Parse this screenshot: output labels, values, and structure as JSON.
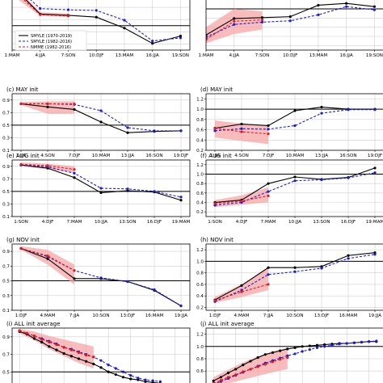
{
  "chart_data": [
    {
      "id": "a",
      "type": "line",
      "title": "",
      "xticks": [
        "1:MAM",
        "4:JJA",
        "7:SON",
        "10:DJF",
        "13:MAM",
        "16:JJA",
        "19:SON"
      ],
      "xlim": [
        1,
        20
      ],
      "ylim": [
        0.1,
        1.0
      ],
      "yticks": [],
      "refline": 0.5,
      "legend": [
        "SMYLE (1970-2019)",
        "SMYLE (1982-2016)",
        "NMME (1982-2016)"
      ],
      "series": [
        {
          "style": "smyle_long",
          "x": [
            1,
            4,
            7,
            10,
            13,
            16,
            19
          ],
          "y": [
            1.15,
            0.69,
            0.67,
            0.64,
            0.46,
            0.21,
            0.33
          ]
        },
        {
          "style": "smyle_short",
          "x": [
            1,
            4,
            7,
            10,
            13,
            16,
            19
          ],
          "y": [
            1.2,
            0.78,
            0.76,
            0.75,
            0.59,
            0.25,
            0.3
          ]
        },
        {
          "style": "nmme",
          "x": [
            1,
            4,
            7
          ],
          "y": [
            1.1,
            0.68,
            0.66
          ]
        }
      ],
      "band": {
        "x": [
          1,
          4,
          7
        ],
        "lo": [
          1.0,
          0.66,
          0.64
        ],
        "hi": [
          1.2,
          0.72,
          0.7
        ]
      }
    },
    {
      "id": "b",
      "type": "line",
      "title": "",
      "xticks": [
        "1:MAM",
        "4:JJA",
        "7:SON",
        "10:DJF",
        "13:MAM",
        "16:JJA",
        "19:SON"
      ],
      "xlim": [
        1,
        20
      ],
      "ylim": [
        0.1,
        1.3
      ],
      "yticks": [],
      "refline": 1.0,
      "series": [
        {
          "style": "smyle_long",
          "x": [
            1,
            4,
            7,
            10,
            13,
            16,
            19
          ],
          "y": [
            0.43,
            0.79,
            0.81,
            0.83,
            1.08,
            1.12,
            1.05
          ]
        },
        {
          "style": "smyle_short",
          "x": [
            1,
            4,
            7,
            10,
            13,
            16,
            19
          ],
          "y": [
            0.38,
            0.66,
            0.71,
            0.74,
            0.87,
            1.05,
            0.98
          ]
        },
        {
          "style": "nmme",
          "x": [
            1,
            4,
            7
          ],
          "y": [
            0.33,
            0.73,
            0.76
          ]
        }
      ],
      "band": {
        "x": [
          1,
          4,
          7
        ],
        "lo": [
          0.25,
          0.45,
          0.55
        ],
        "hi": [
          0.6,
          1.0,
          0.95
        ]
      }
    },
    {
      "id": "c",
      "type": "line",
      "title": "(c) MAY init",
      "xticks": [
        "1:JJA",
        "4:SON",
        "7:DJF",
        "10:MAM",
        "13:JJA",
        "16:SON",
        "19:DJF"
      ],
      "xlim": [
        0,
        20
      ],
      "ylim": [
        0.1,
        1.0
      ],
      "yticks": [
        0.1,
        0.3,
        0.5,
        0.7,
        0.9
      ],
      "refline": 0.5,
      "series": [
        {
          "style": "smyle_long",
          "x": [
            1,
            4,
            7,
            10,
            13,
            16,
            19
          ],
          "y": [
            0.84,
            0.79,
            0.75,
            0.55,
            0.38,
            0.4,
            0.41
          ]
        },
        {
          "style": "smyle_short",
          "x": [
            1,
            4,
            7,
            10,
            13,
            16,
            19
          ],
          "y": [
            0.84,
            0.84,
            0.83,
            0.73,
            0.46,
            0.41,
            0.41
          ]
        },
        {
          "style": "nmme",
          "x": [
            1,
            4,
            7
          ],
          "y": [
            0.84,
            0.84,
            0.84
          ]
        }
      ],
      "band": {
        "x": [
          1,
          4,
          7
        ],
        "lo": [
          0.82,
          0.68,
          0.68
        ],
        "hi": [
          0.87,
          0.88,
          0.88
        ]
      }
    },
    {
      "id": "d",
      "type": "line",
      "title": "(d) MAY init",
      "xticks": [
        "1:JJA",
        "4:SON",
        "7:DJF",
        "10:MAM",
        "13:JJA",
        "16:SON",
        "19:DJF"
      ],
      "xlim": [
        0,
        20
      ],
      "ylim": [
        0.2,
        1.3
      ],
      "yticks": [
        0.2,
        0.4,
        0.6,
        0.8,
        1.0,
        1.2
      ],
      "refline": 1.0,
      "series": [
        {
          "style": "smyle_long",
          "x": [
            1,
            4,
            7,
            10,
            13,
            16,
            19
          ],
          "y": [
            0.63,
            0.71,
            0.68,
            0.97,
            1.04,
            1.0,
            1.0
          ]
        },
        {
          "style": "smyle_short",
          "x": [
            1,
            4,
            7,
            10,
            13,
            16,
            19
          ],
          "y": [
            0.58,
            0.62,
            0.61,
            0.68,
            0.92,
            0.99,
            0.99
          ]
        },
        {
          "style": "nmme",
          "x": [
            1,
            4,
            7
          ],
          "y": [
            0.63,
            0.56,
            0.52
          ]
        }
      ],
      "band": {
        "x": [
          1,
          4,
          7
        ],
        "lo": [
          0.45,
          0.38,
          0.32
        ],
        "hi": [
          0.78,
          0.72,
          0.68
        ]
      }
    },
    {
      "id": "e",
      "type": "line",
      "title": "(e) AUG init",
      "xticks": [
        "1:SON",
        "4:DJF",
        "7:MAM",
        "10:JJA",
        "13:SON",
        "16:DJF",
        "19:MAM"
      ],
      "xlim": [
        0,
        20
      ],
      "ylim": [
        0.1,
        1.0
      ],
      "yticks": [
        0.1,
        0.3,
        0.5,
        0.7,
        0.9
      ],
      "refline": 0.5,
      "series": [
        {
          "style": "smyle_long",
          "x": [
            1,
            4,
            7,
            10,
            13,
            16,
            19
          ],
          "y": [
            0.92,
            0.87,
            0.72,
            0.48,
            0.51,
            0.49,
            0.36
          ]
        },
        {
          "style": "smyle_short",
          "x": [
            1,
            4,
            7,
            10,
            13,
            16,
            19
          ],
          "y": [
            0.92,
            0.89,
            0.79,
            0.55,
            0.54,
            0.5,
            0.41
          ]
        },
        {
          "style": "nmme",
          "x": [
            1,
            4,
            7
          ],
          "y": [
            0.93,
            0.91,
            0.85
          ]
        }
      ],
      "band": {
        "x": [
          1,
          4,
          7
        ],
        "lo": [
          0.9,
          0.85,
          0.8
        ],
        "hi": [
          0.96,
          0.94,
          0.9
        ]
      }
    },
    {
      "id": "f",
      "type": "line",
      "title": "(f) AUG init",
      "xticks": [
        "1:SON",
        "4:DJF",
        "7:MAM",
        "10:JJA",
        "13:SON",
        "16:DJF",
        "19:MAM"
      ],
      "xlim": [
        0,
        20
      ],
      "ylim": [
        0.1,
        1.3
      ],
      "yticks": [
        0.2,
        0.4,
        0.6,
        0.8,
        1.0,
        1.2
      ],
      "refline": 1.0,
      "series": [
        {
          "style": "smyle_long",
          "x": [
            1,
            4,
            7,
            10,
            13,
            16,
            19
          ],
          "y": [
            0.4,
            0.45,
            0.8,
            0.94,
            0.89,
            0.93,
            1.13
          ]
        },
        {
          "style": "smyle_short",
          "x": [
            1,
            4,
            7,
            10,
            13,
            16,
            19
          ],
          "y": [
            0.34,
            0.4,
            0.63,
            0.86,
            0.88,
            0.92,
            1.03
          ]
        },
        {
          "style": "nmme",
          "x": [
            1,
            4,
            7
          ],
          "y": [
            0.38,
            0.43,
            0.54
          ]
        }
      ],
      "band": {
        "x": [
          1,
          4,
          7
        ],
        "lo": [
          0.3,
          0.35,
          0.4
        ],
        "hi": [
          0.45,
          0.55,
          0.72
        ]
      }
    },
    {
      "id": "g",
      "type": "line",
      "title": "(g) NOV init",
      "xticks": [
        "1:DJF",
        "4:MAM",
        "7:JJA",
        "10:SON",
        "13:DJF",
        "16:MAM",
        "19:JJA"
      ],
      "xlim": [
        0,
        20
      ],
      "ylim": [
        0.1,
        1.0
      ],
      "yticks": [
        0.1,
        0.3,
        0.5,
        0.7,
        0.9
      ],
      "refline": 0.5,
      "series": [
        {
          "style": "smyle_long",
          "x": [
            1,
            4,
            7,
            10,
            13,
            16,
            19
          ],
          "y": [
            0.94,
            0.8,
            0.53,
            0.53,
            0.49,
            0.37,
            0.16
          ]
        },
        {
          "style": "smyle_short",
          "x": [
            1,
            4,
            7,
            10,
            13,
            16,
            19
          ],
          "y": [
            0.94,
            0.83,
            0.64,
            0.54,
            0.49,
            0.38,
            0.16
          ]
        },
        {
          "style": "nmme",
          "x": [
            1,
            4,
            7
          ],
          "y": [
            0.94,
            0.84,
            0.64
          ]
        }
      ],
      "band": {
        "x": [
          1,
          4,
          7
        ],
        "lo": [
          0.92,
          0.72,
          0.45
        ],
        "hi": [
          0.97,
          0.92,
          0.72
        ]
      }
    },
    {
      "id": "h",
      "type": "line",
      "title": "(h) NOV init",
      "xticks": [
        "1:DJF",
        "4:MAM",
        "7:JJA",
        "10:SON",
        "13:DJF",
        "16:MAM",
        "19:JJA"
      ],
      "xlim": [
        0,
        20
      ],
      "ylim": [
        0.15,
        1.3
      ],
      "yticks": [
        0.2,
        0.4,
        0.6,
        0.8,
        1.0,
        1.2
      ],
      "refline": 1.0,
      "series": [
        {
          "style": "smyle_long",
          "x": [
            1,
            4,
            7,
            10,
            13,
            16,
            19
          ],
          "y": [
            0.33,
            0.58,
            0.89,
            0.89,
            0.91,
            1.1,
            1.15
          ]
        },
        {
          "style": "smyle_short",
          "x": [
            1,
            4,
            7,
            10,
            13,
            16,
            19
          ],
          "y": [
            0.3,
            0.5,
            0.77,
            0.82,
            0.88,
            1.05,
            1.12
          ]
        },
        {
          "style": "nmme",
          "x": [
            1,
            4,
            7
          ],
          "y": [
            0.32,
            0.47,
            0.6
          ]
        }
      ],
      "band": {
        "x": [
          1,
          4,
          7
        ],
        "lo": [
          0.28,
          0.38,
          0.5
        ],
        "hi": [
          0.38,
          0.6,
          0.88
        ]
      }
    },
    {
      "id": "i",
      "type": "line",
      "title": "(i) ALL init average",
      "xticks": [],
      "xlim": [
        0,
        24
      ],
      "ylim": [
        0.3,
        1.0
      ],
      "yticks": [
        0.5,
        0.7,
        0.9
      ],
      "refline": 0.5,
      "series": [
        {
          "style": "smyle_long",
          "x": [
            1,
            2,
            3,
            4,
            5,
            6,
            7,
            8,
            9,
            10,
            11,
            12,
            13,
            14,
            15,
            16,
            17,
            18,
            19,
            20
          ],
          "y": [
            0.96,
            0.93,
            0.88,
            0.84,
            0.79,
            0.75,
            0.71,
            0.68,
            0.65,
            0.62,
            0.59,
            0.55,
            0.5,
            0.47,
            0.44,
            0.42,
            0.41,
            0.39,
            0.38,
            0.37
          ]
        },
        {
          "style": "smyle_short",
          "x": [
            1,
            2,
            3,
            4,
            5,
            6,
            7,
            8,
            9,
            10,
            11,
            12,
            13,
            14,
            15,
            16,
            17,
            18,
            19,
            20
          ],
          "y": [
            0.97,
            0.94,
            0.91,
            0.88,
            0.85,
            0.82,
            0.78,
            0.76,
            0.73,
            0.7,
            0.67,
            0.63,
            0.58,
            0.54,
            0.5,
            0.46,
            0.43,
            0.41,
            0.4,
            0.39
          ]
        },
        {
          "style": "nmme",
          "x": [
            1,
            2,
            3,
            4,
            5,
            6,
            7,
            8,
            9,
            10,
            11
          ],
          "y": [
            0.97,
            0.94,
            0.91,
            0.87,
            0.84,
            0.81,
            0.78,
            0.75,
            0.72,
            0.69,
            0.67
          ]
        }
      ],
      "band": {
        "x": [
          1,
          3,
          5,
          7,
          9,
          11
        ],
        "lo": [
          0.94,
          0.86,
          0.76,
          0.68,
          0.6,
          0.54
        ],
        "hi": [
          0.99,
          0.96,
          0.91,
          0.87,
          0.83,
          0.79
        ]
      }
    },
    {
      "id": "j",
      "type": "line",
      "title": "(j) ALL init average",
      "xticks": [],
      "xlim": [
        0,
        24
      ],
      "ylim": [
        0.3,
        1.3
      ],
      "yticks": [
        0.6,
        0.8,
        1.0,
        1.2
      ],
      "refline": 1.0,
      "series": [
        {
          "style": "smyle_long",
          "x": [
            1,
            2,
            3,
            4,
            5,
            6,
            7,
            8,
            9,
            10,
            11,
            12,
            13,
            14,
            15,
            16,
            17,
            18,
            19,
            20,
            21,
            22,
            23
          ],
          "y": [
            0.44,
            0.5,
            0.57,
            0.63,
            0.7,
            0.76,
            0.82,
            0.87,
            0.9,
            0.93,
            0.96,
            0.98,
            1.0,
            1.01,
            1.02,
            1.03,
            1.04,
            1.05,
            1.05,
            1.06,
            1.07,
            1.08,
            1.08
          ]
        },
        {
          "style": "smyle_short",
          "x": [
            1,
            2,
            3,
            4,
            5,
            6,
            7,
            8,
            9,
            10,
            11,
            12,
            13,
            14,
            15,
            16,
            17,
            18,
            19,
            20,
            21,
            22,
            23
          ],
          "y": [
            0.38,
            0.43,
            0.48,
            0.53,
            0.58,
            0.63,
            0.68,
            0.73,
            0.77,
            0.81,
            0.85,
            0.88,
            0.92,
            0.95,
            0.98,
            1.0,
            1.02,
            1.04,
            1.05,
            1.06,
            1.07,
            1.08,
            1.09
          ]
        },
        {
          "style": "nmme",
          "x": [
            1,
            2,
            3,
            4,
            5,
            6,
            7,
            8,
            9,
            10,
            11
          ],
          "y": [
            0.4,
            0.45,
            0.5,
            0.54,
            0.59,
            0.63,
            0.67,
            0.71,
            0.75,
            0.79,
            0.82
          ]
        }
      ],
      "band": {
        "x": [
          1,
          3,
          5,
          7,
          9,
          11
        ],
        "lo": [
          0.35,
          0.4,
          0.46,
          0.52,
          0.58,
          0.63
        ],
        "hi": [
          0.5,
          0.62,
          0.74,
          0.84,
          0.92,
          0.98
        ]
      }
    }
  ],
  "colors": {
    "smyle_long": "#000000",
    "smyle_short": "#1c1cd6",
    "nmme": "#e31a1c",
    "band": "#f6a6a6",
    "grid": "#cfcfcf",
    "ref": "#000000"
  }
}
